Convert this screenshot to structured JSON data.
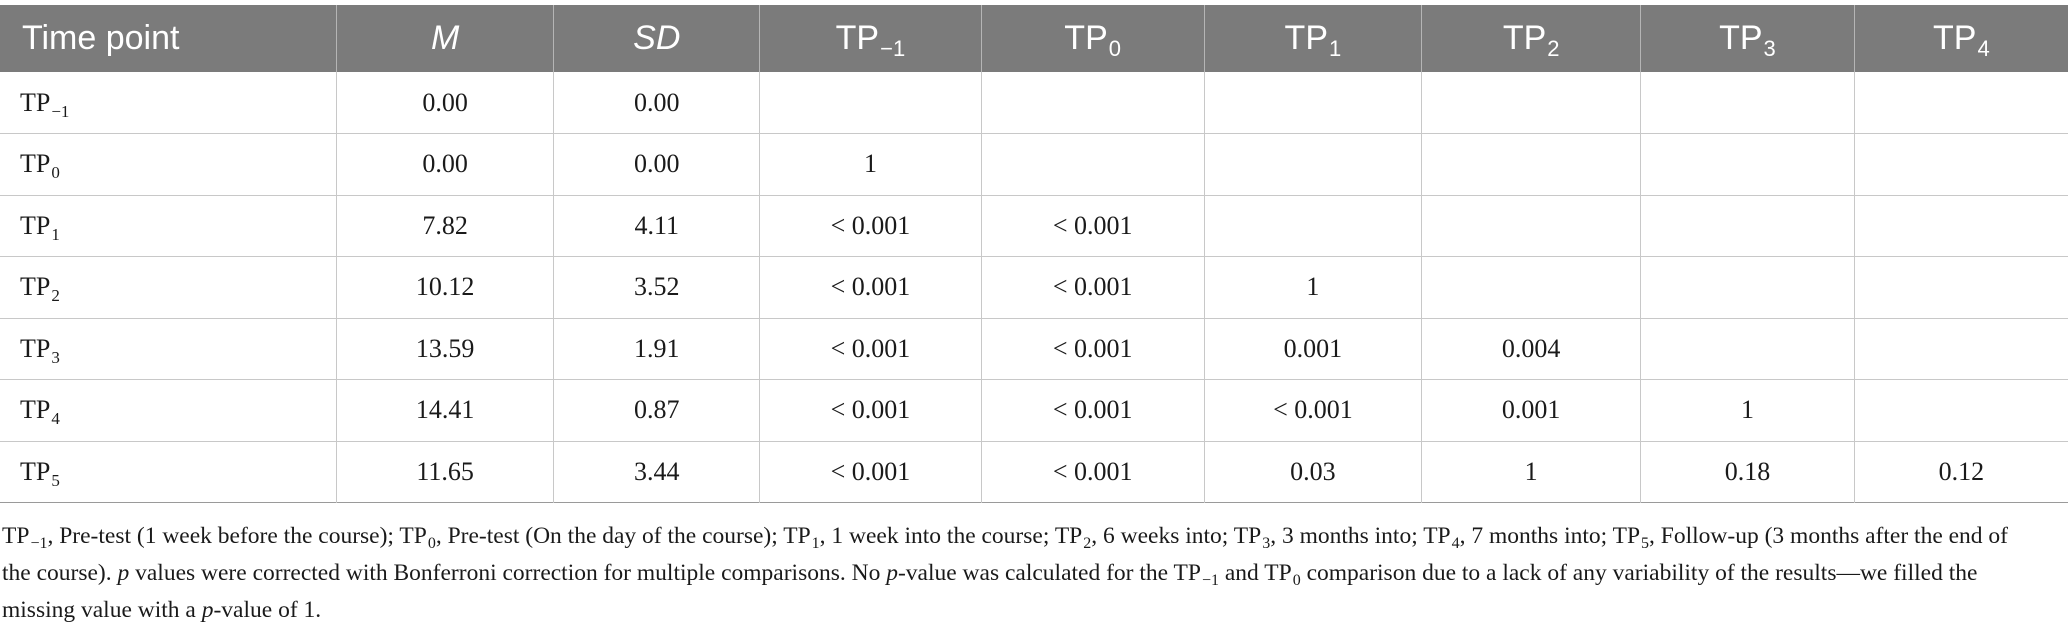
{
  "table": {
    "columns": [
      {
        "base": "Time point",
        "sub": "",
        "italic": false
      },
      {
        "base": "M",
        "sub": "",
        "italic": true
      },
      {
        "base": "SD",
        "sub": "",
        "italic": true
      },
      {
        "base": "TP",
        "sub": "−1",
        "italic": false
      },
      {
        "base": "TP",
        "sub": "0",
        "italic": false
      },
      {
        "base": "TP",
        "sub": "1",
        "italic": false
      },
      {
        "base": "TP",
        "sub": "2",
        "italic": false
      },
      {
        "base": "TP",
        "sub": "3",
        "italic": false
      },
      {
        "base": "TP",
        "sub": "4",
        "italic": false
      }
    ],
    "rows": [
      {
        "tp_base": "TP",
        "tp_sub": "−1",
        "cells": [
          "0.00",
          "0.00",
          "",
          "",
          "",
          "",
          "",
          ""
        ]
      },
      {
        "tp_base": "TP",
        "tp_sub": "0",
        "cells": [
          "0.00",
          "0.00",
          "1",
          "",
          "",
          "",
          "",
          ""
        ]
      },
      {
        "tp_base": "TP",
        "tp_sub": "1",
        "cells": [
          "7.82",
          "4.11",
          "< 0.001",
          "< 0.001",
          "",
          "",
          "",
          ""
        ]
      },
      {
        "tp_base": "TP",
        "tp_sub": "2",
        "cells": [
          "10.12",
          "3.52",
          "< 0.001",
          "< 0.001",
          "1",
          "",
          "",
          ""
        ]
      },
      {
        "tp_base": "TP",
        "tp_sub": "3",
        "cells": [
          "13.59",
          "1.91",
          "< 0.001",
          "< 0.001",
          "0.001",
          "0.004",
          "",
          ""
        ]
      },
      {
        "tp_base": "TP",
        "tp_sub": "4",
        "cells": [
          "14.41",
          "0.87",
          "< 0.001",
          "< 0.001",
          "< 0.001",
          "0.001",
          "1",
          ""
        ]
      },
      {
        "tp_base": "TP",
        "tp_sub": "5",
        "cells": [
          "11.65",
          "3.44",
          "< 0.001",
          "< 0.001",
          "0.03",
          "1",
          "0.18",
          "0.12"
        ]
      }
    ]
  },
  "footnote": {
    "segments": [
      {
        "t": "TP",
        "style": "normal"
      },
      {
        "t": "−1",
        "style": "sub"
      },
      {
        "t": ", Pre-test (1 week before the course); TP",
        "style": "normal"
      },
      {
        "t": "0",
        "style": "sub"
      },
      {
        "t": ", Pre-test (On the day of the course); TP",
        "style": "normal"
      },
      {
        "t": "1",
        "style": "sub"
      },
      {
        "t": ", 1 week into the course; TP",
        "style": "normal"
      },
      {
        "t": "2",
        "style": "sub"
      },
      {
        "t": ", 6 weeks into; TP",
        "style": "normal"
      },
      {
        "t": "3",
        "style": "sub"
      },
      {
        "t": ", 3 months into; TP",
        "style": "normal"
      },
      {
        "t": "4",
        "style": "sub"
      },
      {
        "t": ", 7 months into; TP",
        "style": "normal"
      },
      {
        "t": "5",
        "style": "sub"
      },
      {
        "t": ", Follow-up (3 months after the end of the course). ",
        "style": "normal"
      },
      {
        "t": "p",
        "style": "italic"
      },
      {
        "t": " values were corrected with Bonferroni correction for multiple comparisons. No ",
        "style": "normal"
      },
      {
        "t": "p",
        "style": "italic"
      },
      {
        "t": "-value was calculated for the TP",
        "style": "normal"
      },
      {
        "t": "−1",
        "style": "sub"
      },
      {
        "t": " and TP",
        "style": "normal"
      },
      {
        "t": "0",
        "style": "sub"
      },
      {
        "t": " comparison due to a lack of any variability of the results—we filled the missing value with a ",
        "style": "normal"
      },
      {
        "t": "p",
        "style": "italic"
      },
      {
        "t": "-value of 1.",
        "style": "normal"
      }
    ]
  }
}
